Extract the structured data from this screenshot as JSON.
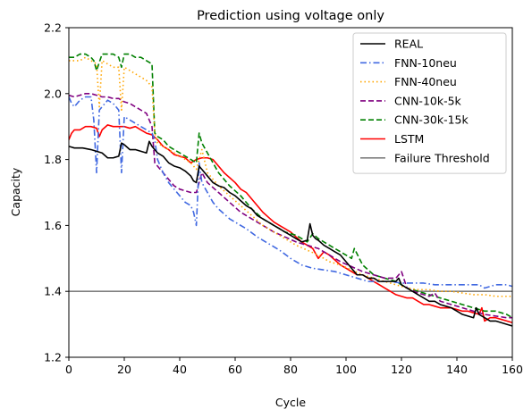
{
  "chart_data": {
    "type": "line",
    "title": "Prediction using voltage only",
    "xlabel": "Cycle",
    "ylabel": "Capacity",
    "xlim": [
      0,
      160
    ],
    "ylim": [
      1.2,
      2.2
    ],
    "xticks": [
      0,
      20,
      40,
      60,
      80,
      100,
      120,
      140,
      160
    ],
    "yticks": [
      1.2,
      1.4,
      1.6,
      1.8,
      2.0,
      2.2
    ],
    "xtick_labels": [
      "0",
      "20",
      "40",
      "60",
      "80",
      "100",
      "120",
      "140",
      "160"
    ],
    "ytick_labels": [
      "1.2",
      "1.4",
      "1.6",
      "1.8",
      "2.0",
      "2.2"
    ],
    "grid": false,
    "legend_position": "top-right",
    "series": [
      {
        "name": "REAL",
        "color": "#000000",
        "dash": "solid",
        "x": [
          0,
          2,
          5,
          8,
          10,
          12,
          14,
          16,
          18,
          19,
          20,
          22,
          24,
          26,
          28,
          29,
          30,
          32,
          34,
          36,
          38,
          40,
          42,
          44,
          45,
          46,
          47,
          48,
          50,
          52,
          54,
          56,
          58,
          60,
          62,
          64,
          66,
          68,
          70,
          72,
          74,
          76,
          78,
          80,
          82,
          84,
          86,
          87,
          88,
          89,
          90,
          92,
          94,
          96,
          98,
          100,
          102,
          104,
          106,
          108,
          110,
          112,
          114,
          116,
          118,
          119,
          120,
          122,
          124,
          126,
          128,
          130,
          132,
          134,
          136,
          138,
          140,
          142,
          144,
          146,
          147,
          148,
          150,
          152,
          154,
          156,
          158,
          160
        ],
        "y": [
          1.84,
          1.835,
          1.835,
          1.83,
          1.825,
          1.82,
          1.805,
          1.805,
          1.81,
          1.85,
          1.845,
          1.83,
          1.83,
          1.825,
          1.82,
          1.855,
          1.84,
          1.82,
          1.81,
          1.79,
          1.78,
          1.775,
          1.765,
          1.75,
          1.735,
          1.73,
          1.78,
          1.77,
          1.75,
          1.73,
          1.72,
          1.715,
          1.7,
          1.69,
          1.675,
          1.66,
          1.65,
          1.63,
          1.62,
          1.61,
          1.6,
          1.59,
          1.58,
          1.57,
          1.56,
          1.55,
          1.555,
          1.605,
          1.57,
          1.56,
          1.555,
          1.54,
          1.53,
          1.52,
          1.51,
          1.49,
          1.47,
          1.45,
          1.45,
          1.44,
          1.44,
          1.43,
          1.43,
          1.43,
          1.43,
          1.44,
          1.42,
          1.41,
          1.4,
          1.39,
          1.38,
          1.37,
          1.37,
          1.36,
          1.355,
          1.35,
          1.34,
          1.33,
          1.325,
          1.32,
          1.35,
          1.33,
          1.32,
          1.31,
          1.31,
          1.305,
          1.3,
          1.295
        ]
      },
      {
        "name": "FNN-10neu",
        "color": "#4169e1",
        "dash": "dashdot",
        "x": [
          0,
          1,
          2,
          4,
          6,
          8,
          9,
          10,
          11,
          12,
          14,
          16,
          18,
          19,
          20,
          22,
          24,
          26,
          28,
          30,
          31,
          32,
          34,
          36,
          38,
          40,
          42,
          44,
          45,
          46,
          47,
          48,
          50,
          52,
          54,
          56,
          58,
          60,
          64,
          68,
          72,
          76,
          80,
          84,
          88,
          92,
          96,
          100,
          104,
          108,
          112,
          116,
          120,
          124,
          128,
          132,
          136,
          140,
          144,
          148,
          150,
          154,
          158,
          160
        ],
        "y": [
          1.99,
          1.97,
          1.96,
          1.98,
          1.99,
          1.99,
          1.92,
          1.76,
          1.95,
          1.96,
          1.98,
          1.97,
          1.95,
          1.76,
          1.93,
          1.92,
          1.91,
          1.9,
          1.89,
          1.88,
          1.86,
          1.8,
          1.76,
          1.73,
          1.71,
          1.69,
          1.67,
          1.66,
          1.64,
          1.6,
          1.79,
          1.73,
          1.7,
          1.67,
          1.65,
          1.635,
          1.62,
          1.61,
          1.59,
          1.565,
          1.545,
          1.525,
          1.5,
          1.48,
          1.47,
          1.465,
          1.46,
          1.45,
          1.44,
          1.43,
          1.43,
          1.43,
          1.425,
          1.425,
          1.425,
          1.42,
          1.42,
          1.42,
          1.42,
          1.42,
          1.41,
          1.42,
          1.42,
          1.415
        ]
      },
      {
        "name": "FNN-40neu",
        "color": "#ffa500",
        "dash": "dotted",
        "x": [
          0,
          2,
          4,
          6,
          8,
          10,
          11,
          12,
          14,
          16,
          18,
          19,
          20,
          22,
          24,
          26,
          28,
          30,
          31,
          32,
          34,
          36,
          38,
          40,
          42,
          44,
          46,
          48,
          50,
          54,
          58,
          62,
          66,
          70,
          74,
          78,
          82,
          86,
          90,
          94,
          98,
          102,
          106,
          110,
          114,
          118,
          122,
          126,
          130,
          134,
          138,
          142,
          146,
          150,
          154,
          158,
          160
        ],
        "y": [
          2.1,
          2.1,
          2.1,
          2.11,
          2.1,
          2.09,
          1.96,
          2.1,
          2.09,
          2.08,
          2.08,
          1.95,
          2.08,
          2.07,
          2.06,
          2.05,
          2.04,
          2.02,
          1.88,
          1.85,
          1.84,
          1.83,
          1.82,
          1.81,
          1.8,
          1.79,
          1.77,
          1.83,
          1.76,
          1.72,
          1.69,
          1.66,
          1.63,
          1.6,
          1.58,
          1.56,
          1.54,
          1.525,
          1.51,
          1.49,
          1.48,
          1.465,
          1.45,
          1.44,
          1.43,
          1.42,
          1.41,
          1.405,
          1.405,
          1.4,
          1.4,
          1.395,
          1.39,
          1.39,
          1.385,
          1.385,
          1.385
        ]
      },
      {
        "name": "CNN-10k-5k",
        "color": "#800080",
        "dash": "dashed",
        "x": [
          0,
          2,
          4,
          6,
          8,
          10,
          12,
          14,
          16,
          18,
          20,
          22,
          24,
          26,
          28,
          30,
          31,
          32,
          34,
          36,
          38,
          40,
          42,
          44,
          46,
          48,
          50,
          54,
          58,
          62,
          66,
          70,
          74,
          78,
          82,
          86,
          90,
          94,
          98,
          102,
          106,
          110,
          114,
          118,
          120,
          122,
          126,
          130,
          132,
          134,
          138,
          142,
          146,
          150,
          154,
          158,
          160
        ],
        "y": [
          1.995,
          1.99,
          1.995,
          2.0,
          2.0,
          1.995,
          1.99,
          1.99,
          1.985,
          1.985,
          1.975,
          1.97,
          1.96,
          1.95,
          1.94,
          1.9,
          1.79,
          1.78,
          1.76,
          1.74,
          1.72,
          1.71,
          1.705,
          1.7,
          1.7,
          1.76,
          1.73,
          1.7,
          1.67,
          1.64,
          1.62,
          1.6,
          1.58,
          1.565,
          1.55,
          1.54,
          1.53,
          1.51,
          1.49,
          1.475,
          1.46,
          1.45,
          1.44,
          1.44,
          1.46,
          1.41,
          1.395,
          1.385,
          1.395,
          1.37,
          1.36,
          1.35,
          1.34,
          1.33,
          1.325,
          1.32,
          1.32
        ]
      },
      {
        "name": "CNN-30k-15k",
        "color": "#008000",
        "dash": "dashed",
        "x": [
          0,
          2,
          4,
          6,
          8,
          9,
          10,
          12,
          14,
          16,
          18,
          19,
          20,
          22,
          24,
          26,
          28,
          30,
          31,
          32,
          34,
          36,
          38,
          40,
          42,
          44,
          46,
          47,
          48,
          50,
          52,
          54,
          58,
          62,
          66,
          70,
          74,
          78,
          82,
          86,
          88,
          90,
          94,
          98,
          102,
          103,
          106,
          110,
          114,
          118,
          122,
          126,
          130,
          134,
          138,
          142,
          146,
          150,
          154,
          158,
          160
        ],
        "y": [
          2.11,
          2.11,
          2.12,
          2.12,
          2.11,
          2.1,
          2.07,
          2.12,
          2.12,
          2.12,
          2.11,
          2.08,
          2.12,
          2.12,
          2.11,
          2.11,
          2.1,
          2.09,
          1.88,
          1.87,
          1.86,
          1.84,
          1.83,
          1.82,
          1.81,
          1.8,
          1.79,
          1.88,
          1.85,
          1.82,
          1.79,
          1.76,
          1.72,
          1.69,
          1.65,
          1.62,
          1.6,
          1.58,
          1.57,
          1.55,
          1.575,
          1.56,
          1.54,
          1.52,
          1.5,
          1.53,
          1.48,
          1.45,
          1.44,
          1.43,
          1.41,
          1.4,
          1.39,
          1.38,
          1.37,
          1.36,
          1.35,
          1.34,
          1.34,
          1.33,
          1.32
        ]
      },
      {
        "name": "LSTM",
        "color": "#ff0000",
        "dash": "solid",
        "x": [
          0,
          1,
          2,
          4,
          6,
          8,
          10,
          11,
          12,
          14,
          16,
          18,
          20,
          22,
          24,
          26,
          28,
          30,
          32,
          34,
          36,
          38,
          40,
          42,
          44,
          46,
          48,
          50,
          52,
          54,
          56,
          58,
          60,
          62,
          64,
          66,
          68,
          70,
          72,
          74,
          76,
          78,
          80,
          82,
          84,
          86,
          88,
          90,
          92,
          94,
          96,
          98,
          100,
          102,
          104,
          106,
          108,
          110,
          112,
          114,
          116,
          118,
          120,
          122,
          124,
          126,
          128,
          130,
          132,
          134,
          136,
          138,
          140,
          142,
          144,
          146,
          148,
          149,
          150,
          152,
          154,
          156,
          158,
          160
        ],
        "y": [
          1.86,
          1.88,
          1.89,
          1.89,
          1.9,
          1.9,
          1.895,
          1.87,
          1.89,
          1.905,
          1.9,
          1.9,
          1.9,
          1.895,
          1.9,
          1.89,
          1.88,
          1.875,
          1.86,
          1.84,
          1.83,
          1.815,
          1.81,
          1.805,
          1.79,
          1.8,
          1.805,
          1.805,
          1.8,
          1.78,
          1.76,
          1.745,
          1.73,
          1.71,
          1.7,
          1.68,
          1.66,
          1.64,
          1.625,
          1.61,
          1.6,
          1.59,
          1.58,
          1.565,
          1.55,
          1.54,
          1.53,
          1.5,
          1.52,
          1.51,
          1.495,
          1.48,
          1.47,
          1.46,
          1.45,
          1.45,
          1.44,
          1.43,
          1.42,
          1.41,
          1.4,
          1.39,
          1.385,
          1.38,
          1.38,
          1.37,
          1.36,
          1.36,
          1.355,
          1.35,
          1.35,
          1.35,
          1.345,
          1.34,
          1.34,
          1.335,
          1.33,
          1.35,
          1.31,
          1.32,
          1.32,
          1.315,
          1.31,
          1.305
        ]
      },
      {
        "name": "Failure Threshold",
        "color": "#808080",
        "dash": "solid",
        "x": [
          0,
          160
        ],
        "y": [
          1.4,
          1.4
        ]
      }
    ]
  }
}
